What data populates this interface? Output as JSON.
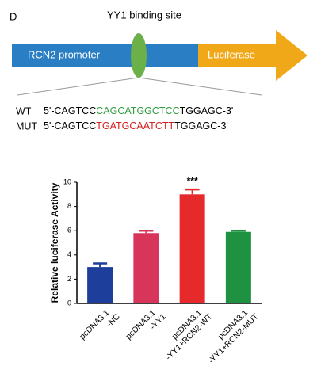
{
  "diagram": {
    "panel_label": "D",
    "site_label": "YY1 binding site",
    "promoter_label": "RCN2 promoter",
    "reporter_label": "Luciferase",
    "sequences": [
      {
        "name": "WT",
        "prefix": "5'-CAGTCC",
        "site": "CAGCATGGCTCC",
        "suffix": "TGGAGC-3'",
        "site_color": "#2e9e3e"
      },
      {
        "name": "MUT",
        "prefix": "5'-CAGTCC",
        "site": "TGATGCAATCTT",
        "suffix": "TGGAGC-3'",
        "site_color": "#d42020"
      }
    ]
  },
  "chart_data": {
    "type": "bar",
    "y_label": "Relative luciferase Activity",
    "categories": [
      [
        "pcDNA3.1",
        "-NC"
      ],
      [
        "pcDNA3.1",
        "-YY1"
      ],
      [
        "pcDNA3.1",
        "-YY1+RCN2-WT"
      ],
      [
        "pcDNA3.1",
        "-YY1+RCN2-MUT"
      ]
    ],
    "values": [
      3.0,
      5.8,
      9.0,
      5.9
    ],
    "errors": [
      0.3,
      0.2,
      0.4,
      0.1
    ],
    "colors": [
      "#1d3f9b",
      "#d8355b",
      "#e62a2c",
      "#1f9242"
    ],
    "annotations": [
      null,
      null,
      "***",
      null
    ],
    "ylim": [
      0,
      10
    ],
    "yticks": [
      0,
      2,
      4,
      6,
      8,
      10
    ]
  }
}
